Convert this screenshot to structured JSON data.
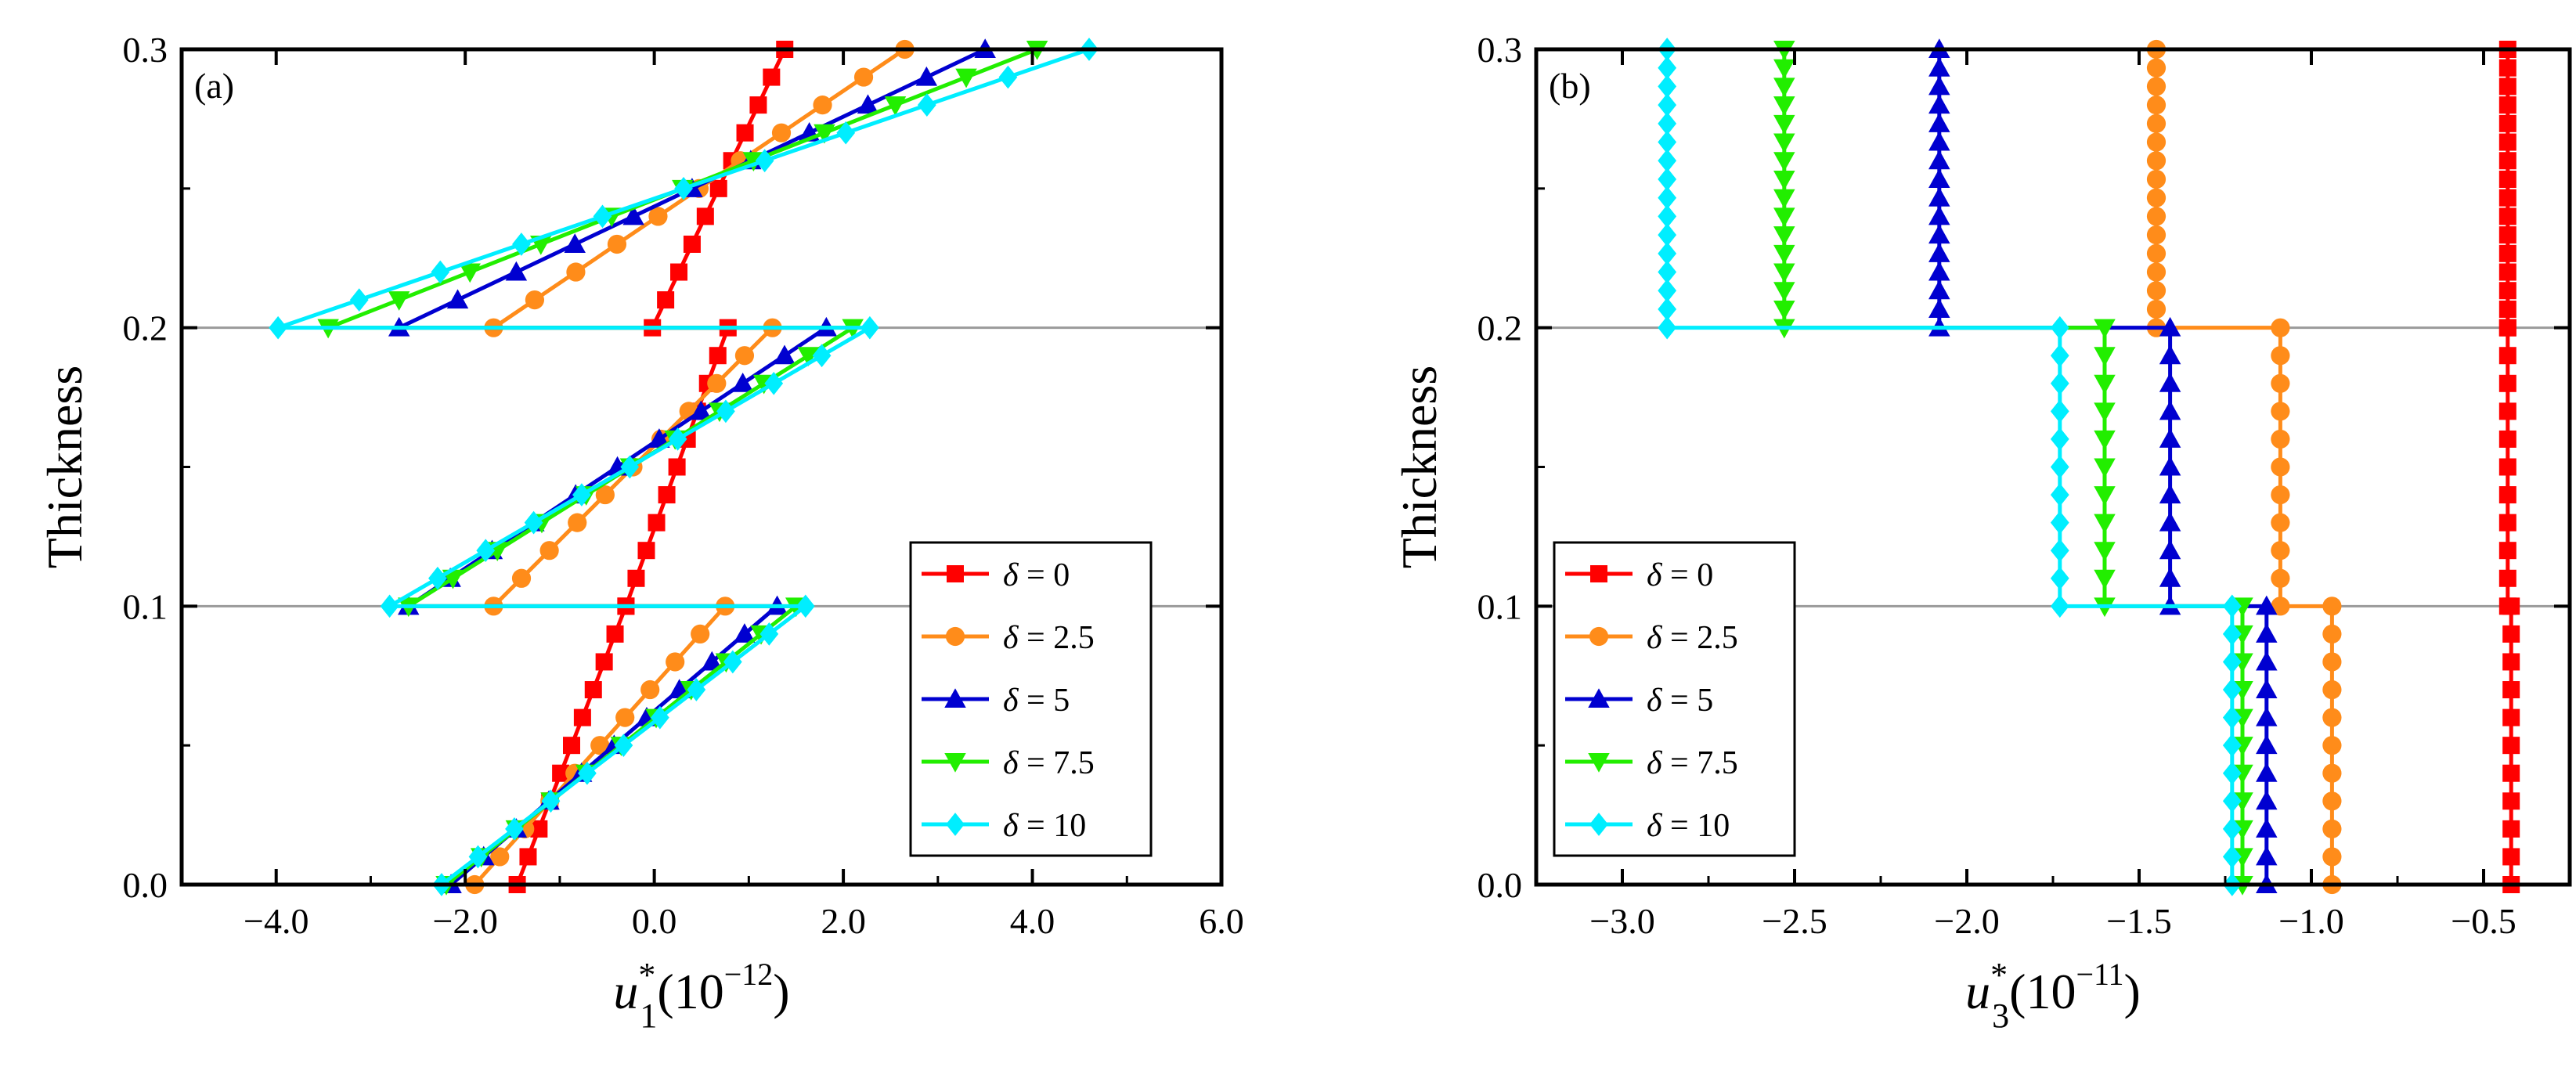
{
  "chart_data": [
    {
      "type": "line",
      "panel_label": "(a)",
      "xlabel": {
        "base": "u",
        "sup": "*",
        "sub": "1",
        "scale_pre": "(10",
        "scale_exp": "−12",
        "scale_post": ")"
      },
      "ylabel": "Thickness",
      "xlim": [
        -5,
        6
      ],
      "ylim": [
        0,
        0.3
      ],
      "xticks": [
        -4,
        -2,
        0,
        2,
        4,
        6
      ],
      "xtick_labels": [
        "−4.0",
        "−2.0",
        "0.0",
        "2.0",
        "4.0",
        "6.0"
      ],
      "yticks": [
        0,
        0.1,
        0.2,
        0.3
      ],
      "ytick_labels": [
        "0.0",
        "0.1",
        "0.2",
        "0.3"
      ],
      "hlines": [
        0.1,
        0.2
      ],
      "legend_position": "lower-right",
      "series": [
        {
          "name": "δ = 0",
          "color": "#ff0000",
          "marker": "square",
          "segments": [
            {
              "x0": -1.45,
              "x1": -0.3,
              "y0": 0.0,
              "y1": 0.1
            },
            {
              "x0": -0.3,
              "x1": 0.78,
              "y0": 0.1,
              "y1": 0.2
            },
            {
              "x0": -0.02,
              "x1": 1.38,
              "y0": 0.2,
              "y1": 0.3
            }
          ]
        },
        {
          "name": "δ = 2.5",
          "color": "#ff8c1a",
          "marker": "circle",
          "segments": [
            {
              "x0": -1.9,
              "x1": 0.75,
              "y0": 0.0,
              "y1": 0.1
            },
            {
              "x0": -1.7,
              "x1": 1.25,
              "y0": 0.1,
              "y1": 0.2
            },
            {
              "x0": -1.7,
              "x1": 2.65,
              "y0": 0.2,
              "y1": 0.3
            }
          ]
        },
        {
          "name": "δ = 5",
          "color": "#0000d0",
          "marker": "triangle-up",
          "segments": [
            {
              "x0": -2.15,
              "x1": 1.3,
              "y0": 0.0,
              "y1": 0.1
            },
            {
              "x0": -2.6,
              "x1": 1.82,
              "y0": 0.1,
              "y1": 0.2
            },
            {
              "x0": -2.7,
              "x1": 3.5,
              "y0": 0.2,
              "y1": 0.3
            }
          ]
        },
        {
          "name": "δ = 7.5",
          "color": "#22ee00",
          "marker": "triangle-down",
          "segments": [
            {
              "x0": -2.2,
              "x1": 1.5,
              "y0": 0.0,
              "y1": 0.1
            },
            {
              "x0": -2.6,
              "x1": 2.1,
              "y0": 0.1,
              "y1": 0.2
            },
            {
              "x0": -3.45,
              "x1": 4.05,
              "y0": 0.2,
              "y1": 0.3
            }
          ]
        },
        {
          "name": "δ = 10",
          "color": "#00eeff",
          "marker": "diamond",
          "segments": [
            {
              "x0": -2.25,
              "x1": 1.6,
              "y0": 0.0,
              "y1": 0.1
            },
            {
              "x0": -2.8,
              "x1": 2.28,
              "y0": 0.1,
              "y1": 0.2
            },
            {
              "x0": -3.98,
              "x1": 4.6,
              "y0": 0.2,
              "y1": 0.3
            }
          ]
        }
      ]
    },
    {
      "type": "line",
      "panel_label": "(b)",
      "xlabel": {
        "base": "u",
        "sup": "*",
        "sub": "3",
        "scale_pre": "(10",
        "scale_exp": "−11",
        "scale_post": ")"
      },
      "ylabel": "Thickness",
      "xlim": [
        -3.25,
        -0.25
      ],
      "ylim": [
        0,
        0.3
      ],
      "xticks": [
        -3.0,
        -2.5,
        -2.0,
        -1.5,
        -1.0,
        -0.5
      ],
      "xtick_labels": [
        "−3.0",
        "−2.5",
        "−2.0",
        "−1.5",
        "−1.0",
        "−0.5"
      ],
      "yticks": [
        0,
        0.1,
        0.2,
        0.3
      ],
      "ytick_labels": [
        "0.0",
        "0.1",
        "0.2",
        "0.3"
      ],
      "hlines": [
        0.1,
        0.2
      ],
      "legend_position": "lower-left",
      "series": [
        {
          "name": "δ = 0",
          "color": "#ff0000",
          "marker": "square",
          "segments": [
            {
              "x0": -0.42,
              "x1": -0.42,
              "y0": 0.0,
              "y1": 0.1
            },
            {
              "x0": -0.43,
              "x1": -0.43,
              "y0": 0.1,
              "y1": 0.2
            },
            {
              "x0": -0.43,
              "x1": -0.43,
              "y0": 0.2,
              "y1": 0.3
            }
          ]
        },
        {
          "name": "δ = 2.5",
          "color": "#ff8c1a",
          "marker": "circle",
          "segments": [
            {
              "x0": -0.94,
              "x1": -0.94,
              "y0": 0.0,
              "y1": 0.1
            },
            {
              "x0": -1.09,
              "x1": -1.09,
              "y0": 0.1,
              "y1": 0.2
            },
            {
              "x0": -1.45,
              "x1": -1.45,
              "y0": 0.2,
              "y1": 0.3
            }
          ]
        },
        {
          "name": "δ = 5",
          "color": "#0000d0",
          "marker": "triangle-up",
          "segments": [
            {
              "x0": -1.13,
              "x1": -1.13,
              "y0": 0.0,
              "y1": 0.1
            },
            {
              "x0": -1.41,
              "x1": -1.41,
              "y0": 0.1,
              "y1": 0.2
            },
            {
              "x0": -2.08,
              "x1": -2.08,
              "y0": 0.2,
              "y1": 0.3
            }
          ]
        },
        {
          "name": "δ = 7.5",
          "color": "#22ee00",
          "marker": "triangle-down",
          "segments": [
            {
              "x0": -1.2,
              "x1": -1.2,
              "y0": 0.0,
              "y1": 0.1
            },
            {
              "x0": -1.6,
              "x1": -1.6,
              "y0": 0.1,
              "y1": 0.2
            },
            {
              "x0": -2.53,
              "x1": -2.53,
              "y0": 0.2,
              "y1": 0.3
            }
          ]
        },
        {
          "name": "δ = 10",
          "color": "#00eeff",
          "marker": "diamond",
          "segments": [
            {
              "x0": -1.23,
              "x1": -1.23,
              "y0": 0.0,
              "y1": 0.1
            },
            {
              "x0": -1.73,
              "x1": -1.73,
              "y0": 0.1,
              "y1": 0.2
            },
            {
              "x0": -2.87,
              "x1": -2.87,
              "y0": 0.2,
              "y1": 0.3
            }
          ]
        }
      ]
    }
  ]
}
